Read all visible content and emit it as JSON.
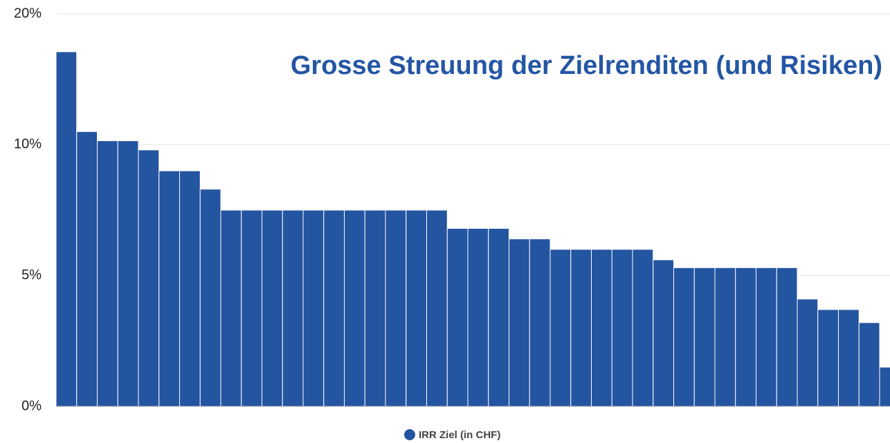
{
  "chart_data": {
    "type": "bar",
    "title": "Grosse Streuung der Zielrenditen (und Risiken)",
    "series": [
      {
        "name": "IRR Ziel (in CHF)",
        "color": "#2455a0",
        "values": [
          17.1,
          11.0,
          10.3,
          10.3,
          9.8,
          9.0,
          9.0,
          8.3,
          7.5,
          7.5,
          7.5,
          7.5,
          7.5,
          7.5,
          7.5,
          7.5,
          7.5,
          7.5,
          7.5,
          6.8,
          6.8,
          6.8,
          6.4,
          6.4,
          6.0,
          6.0,
          6.0,
          6.0,
          6.0,
          5.6,
          5.3,
          5.3,
          5.3,
          5.3,
          5.3,
          5.3,
          4.1,
          3.7,
          3.7,
          3.2,
          1.5
        ]
      }
    ],
    "ylim": [
      0,
      20
    ],
    "yticks": [
      {
        "value": 0,
        "label": "0%"
      },
      {
        "value": 5,
        "label": "5%"
      },
      {
        "value": 10,
        "label": "10%"
      },
      {
        "value": 20,
        "label": "20%"
      }
    ],
    "scale": "piecewise",
    "grid": true,
    "legend": "bottom"
  }
}
